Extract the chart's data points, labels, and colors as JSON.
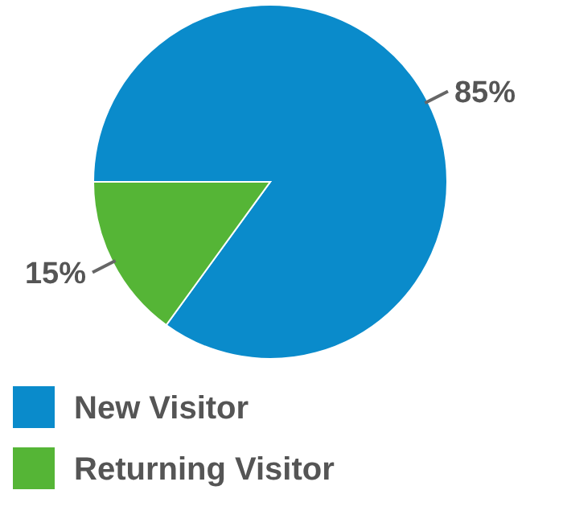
{
  "chart_data": {
    "type": "pie",
    "categories": [
      "New Visitor",
      "Returning Visitor"
    ],
    "values": [
      85,
      15
    ],
    "colors": [
      "#0a8bcb",
      "#55b536"
    ],
    "value_labels": [
      "85%",
      "15%"
    ],
    "legend": "bottom left"
  }
}
